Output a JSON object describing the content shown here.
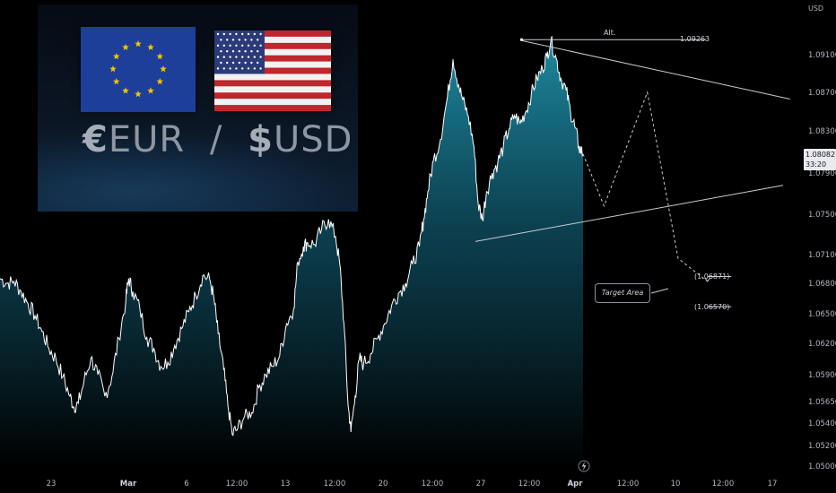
{
  "axis_unit": "USD",
  "current_price": "1.08082",
  "countdown": "33:20",
  "banner": {
    "pair_left_symbol": "€",
    "pair_left": "EUR",
    "separator": "/",
    "pair_right_symbol": "$",
    "pair_right": "USD",
    "icons": [
      "eu-flag-icon",
      "us-flag-icon"
    ]
  },
  "annotations": {
    "alt_label": "Alt.",
    "alt_price": "1.09263",
    "target_label": "Target Area",
    "target_upper": "(1.06871)",
    "target_lower": "(1.06570)"
  },
  "event_icon": "lightning-icon",
  "colors": {
    "background": "#000000",
    "line": "#ffffff",
    "area_top": "#1d8aa0",
    "area_bottom": "#000000",
    "price_tag": "#e8eaed"
  },
  "chart_data": {
    "type": "area",
    "title": "",
    "xlabel": "",
    "ylabel": "USD",
    "y_ticks": [
      "1.09100",
      "1.08700",
      "1.08300",
      "1.07900",
      "1.07500",
      "1.07100",
      "1.06800",
      "1.06500",
      "1.06200",
      "1.05900",
      "1.05650",
      "1.05400",
      "1.05200",
      "1.05000"
    ],
    "x_ticks": [
      {
        "label": "23",
        "bold": false,
        "t": 23
      },
      {
        "label": "Mar",
        "bold": true,
        "t": 29
      },
      {
        "label": "6",
        "bold": false,
        "t": 35
      },
      {
        "label": "12:00",
        "bold": false,
        "t": 38.5
      },
      {
        "label": "13",
        "bold": false,
        "t": 42
      },
      {
        "label": "12:00",
        "bold": false,
        "t": 45.5
      },
      {
        "label": "20",
        "bold": false,
        "t": 49
      },
      {
        "label": "12:00",
        "bold": false,
        "t": 52.5
      },
      {
        "label": "27",
        "bold": false,
        "t": 56
      },
      {
        "label": "12:00",
        "bold": false,
        "t": 59.5
      },
      {
        "label": "Apr",
        "bold": true,
        "t": 62
      },
      {
        "label": "12:00",
        "bold": false,
        "t": 65.5
      },
      {
        "label": "10",
        "bold": false,
        "t": 69
      },
      {
        "label": "12:00",
        "bold": false,
        "t": 72.5
      },
      {
        "label": "17",
        "bold": false,
        "t": 76
      }
    ],
    "series": [
      {
        "points": [
          [
            18,
            1.0685
          ],
          [
            18.5,
            1.068
          ],
          [
            19,
            1.0682
          ],
          [
            19.5,
            1.0672
          ],
          [
            20,
            1.066
          ],
          [
            20.5,
            1.0648
          ],
          [
            21,
            1.0632
          ],
          [
            21.5,
            1.0615
          ],
          [
            22,
            1.0605
          ],
          [
            22.5,
            1.0588
          ],
          [
            23,
            1.057
          ],
          [
            23.3,
            1.0558
          ],
          [
            23.6,
            1.0563
          ],
          [
            24,
            1.0583
          ],
          [
            24.5,
            1.0606
          ],
          [
            25,
            1.059
          ],
          [
            25.5,
            1.057
          ],
          [
            26,
            1.0588
          ],
          [
            26.5,
            1.0625
          ],
          [
            27,
            1.0663
          ],
          [
            27.2,
            1.0685
          ],
          [
            27.5,
            1.0672
          ],
          [
            28,
            1.0655
          ],
          [
            28.5,
            1.0626
          ],
          [
            29,
            1.0615
          ],
          [
            29.5,
            1.0598
          ],
          [
            30,
            1.0602
          ],
          [
            30.5,
            1.0618
          ],
          [
            31,
            1.0635
          ],
          [
            31.5,
            1.0652
          ],
          [
            32,
            1.0668
          ],
          [
            32.5,
            1.0688
          ],
          [
            33,
            1.0684
          ],
          [
            33.3,
            1.0665
          ],
          [
            33.6,
            1.063
          ],
          [
            34,
            1.0595
          ],
          [
            34.3,
            1.056
          ],
          [
            34.6,
            1.053
          ],
          [
            35,
            1.0535
          ],
          [
            35.5,
            1.0548
          ],
          [
            36,
            1.0552
          ],
          [
            36.5,
            1.0578
          ],
          [
            37,
            1.059
          ],
          [
            37.5,
            1.0598
          ],
          [
            38,
            1.0608
          ],
          [
            38.5,
            1.064
          ],
          [
            39,
            1.0655
          ],
          [
            39.3,
            1.0702
          ],
          [
            39.7,
            1.0718
          ],
          [
            40,
            1.0722
          ],
          [
            40.5,
            1.072
          ],
          [
            41,
            1.0735
          ],
          [
            41.5,
            1.0745
          ],
          [
            42,
            1.0728
          ],
          [
            42.3,
            1.07
          ],
          [
            42.6,
            1.064
          ],
          [
            42.9,
            1.056
          ],
          [
            43.1,
            1.0532
          ],
          [
            43.4,
            1.057
          ],
          [
            43.7,
            1.0605
          ],
          [
            44,
            1.06
          ],
          [
            44.5,
            1.061
          ],
          [
            45,
            1.0625
          ],
          [
            45.5,
            1.064
          ],
          [
            46,
            1.0658
          ],
          [
            46.5,
            1.067
          ],
          [
            47,
            1.068
          ],
          [
            47.5,
            1.07
          ],
          [
            48,
            1.0718
          ],
          [
            48.3,
            1.0745
          ],
          [
            48.6,
            1.0772
          ],
          [
            49,
            1.0802
          ],
          [
            49.5,
            1.0822
          ],
          [
            50,
            1.0865
          ],
          [
            50.4,
            1.0905
          ],
          [
            50.8,
            1.0878
          ],
          [
            51.1,
            1.0862
          ],
          [
            51.5,
            1.0845
          ],
          [
            51.9,
            1.0815
          ],
          [
            52.2,
            1.076
          ],
          [
            52.5,
            1.0745
          ],
          [
            52.8,
            1.0772
          ],
          [
            53.2,
            1.079
          ],
          [
            53.6,
            1.08
          ],
          [
            54,
            1.0815
          ],
          [
            54.4,
            1.0832
          ],
          [
            54.8,
            1.0846
          ],
          [
            55.2,
            1.0838
          ],
          [
            55.6,
            1.085
          ],
          [
            56,
            1.0868
          ],
          [
            56.4,
            1.0885
          ],
          [
            56.8,
            1.0895
          ],
          [
            57.1,
            1.0908
          ],
          [
            57.4,
            1.0925
          ],
          [
            57.8,
            1.0905
          ],
          [
            58.1,
            1.0885
          ],
          [
            58.5,
            1.0872
          ],
          [
            58.8,
            1.085
          ],
          [
            59.1,
            1.0835
          ],
          [
            59.4,
            1.0815
          ],
          [
            59.7,
            1.0808
          ]
        ]
      }
    ],
    "projection": [
      [
        59.7,
        1.0808
      ],
      [
        61.2,
        1.0758
      ],
      [
        64.3,
        1.087
      ],
      [
        66.5,
        1.0706
      ],
      [
        68.6,
        1.0682
      ]
    ],
    "resistance_line": [
      [
        55.3,
        1.0925
      ],
      [
        74.5,
        1.0863
      ]
    ],
    "support_line": [
      [
        52,
        1.0723
      ],
      [
        74,
        1.0778
      ]
    ],
    "alt_line": [
      [
        55.3,
        1.0926
      ],
      [
        68.5,
        1.0926
      ]
    ],
    "target_upper_tick": [
      [
        68.6,
        1.0687
      ],
      [
        70.3,
        1.0687
      ]
    ],
    "target_lower_tick": [
      [
        68.6,
        1.0657
      ],
      [
        70.3,
        1.0657
      ]
    ],
    "x_range": [
      18,
      78
    ],
    "y_range": [
      1.0495,
      1.0945
    ],
    "grid": false,
    "legend": "none"
  }
}
